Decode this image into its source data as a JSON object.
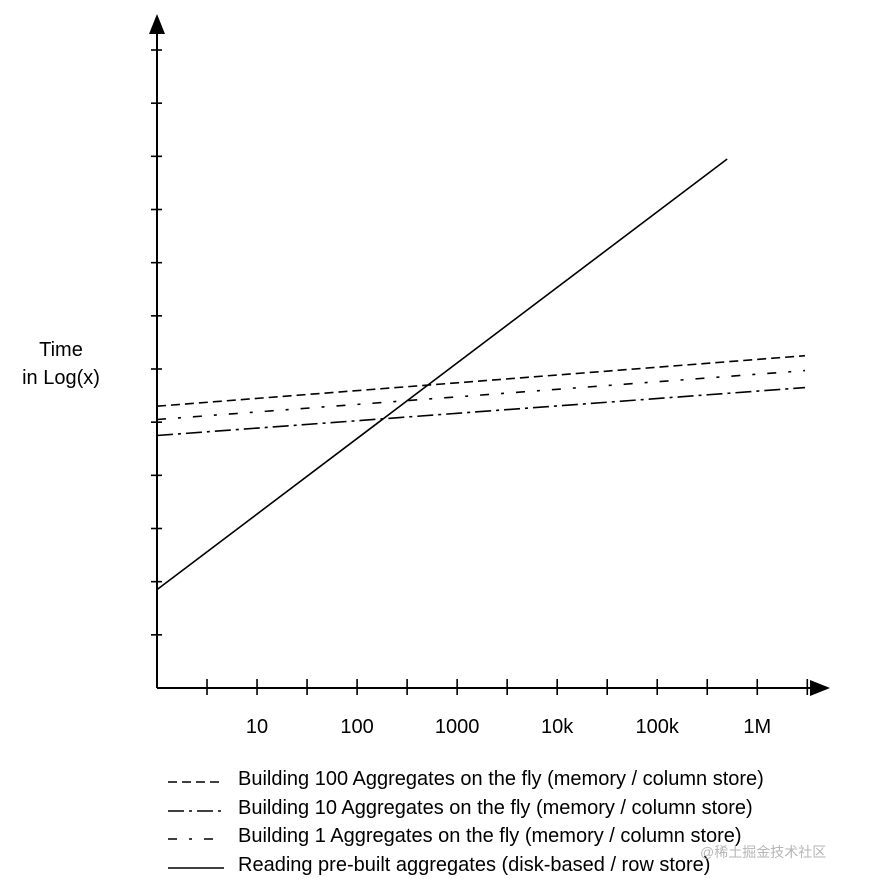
{
  "chart_data": {
    "type": "line",
    "ylabel_lines": [
      "Time",
      "in Log(x)"
    ],
    "y_scale": "log",
    "x_scale": "log",
    "x_tick_labels": [
      {
        "label": "10",
        "value": 10
      },
      {
        "label": "100",
        "value": 100
      },
      {
        "label": "1000",
        "value": 1000
      },
      {
        "label": "10k",
        "value": 10000
      },
      {
        "label": "100k",
        "value": 100000
      },
      {
        "label": "1M",
        "value": 1000000
      }
    ],
    "xlim": [
      1,
      3000000
    ],
    "ylim": [
      0,
      12
    ],
    "y_tick_count": 12,
    "grid": false,
    "series": [
      {
        "name": "Building 100 Aggregates on the fly (memory / column store)",
        "style": "dashed",
        "x": [
          1,
          3000000
        ],
        "y": [
          5.3,
          6.25
        ]
      },
      {
        "name": "Building 10 Aggregates on the fly (memory / column store)",
        "style": "dashdot",
        "x": [
          1,
          3000000
        ],
        "y": [
          4.75,
          5.65
        ]
      },
      {
        "name": "Building 1 Aggregates on the fly (memory / column store)",
        "style": "dashdotsparse",
        "x": [
          1,
          3000000
        ],
        "y": [
          5.05,
          5.97
        ]
      },
      {
        "name": "Reading pre-built aggregates (disk-based / row store)",
        "style": "solid",
        "x": [
          1,
          500000
        ],
        "y": [
          1.85,
          9.95
        ]
      }
    ]
  },
  "watermark": "@稀土掘金技术社区"
}
